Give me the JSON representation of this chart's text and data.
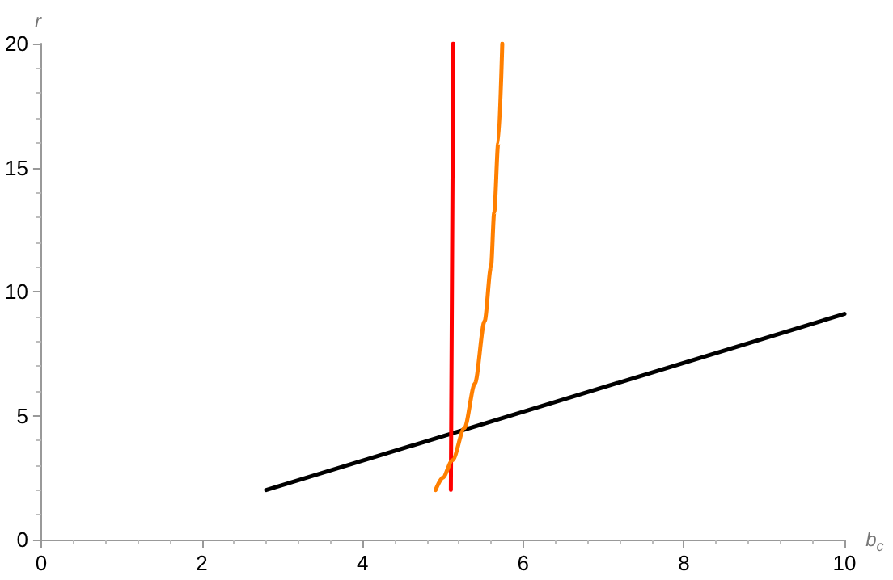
{
  "chart_data": {
    "type": "line",
    "xlabel": "b$_{c}$",
    "ylabel": "r",
    "xlim": [
      0,
      10
    ],
    "xticks": [
      0,
      2,
      4,
      6,
      8,
      10
    ],
    "ylim": [
      0,
      20
    ],
    "yticks": [
      0,
      5,
      10,
      15,
      20
    ],
    "grid": false,
    "marker": "none",
    "line_style": "solid",
    "series": [
      {
        "color": "#000000",
        "x": [
          2.8,
          10
        ],
        "values": [
          2,
          9.1
        ]
      },
      {
        "color": "#ff0000",
        "x": [
          5.1,
          5.13
        ],
        "values": [
          2,
          20
        ]
      },
      {
        "color": "#ff7f00",
        "x": [
          4.91,
          5.0,
          5.12,
          5.27,
          5.4,
          5.52,
          5.6,
          5.64,
          5.69,
          5.74
        ],
        "values": [
          2,
          2.5,
          3.2,
          4.5,
          6.3,
          8.8,
          11,
          13.2,
          16,
          20
        ]
      }
    ]
  }
}
